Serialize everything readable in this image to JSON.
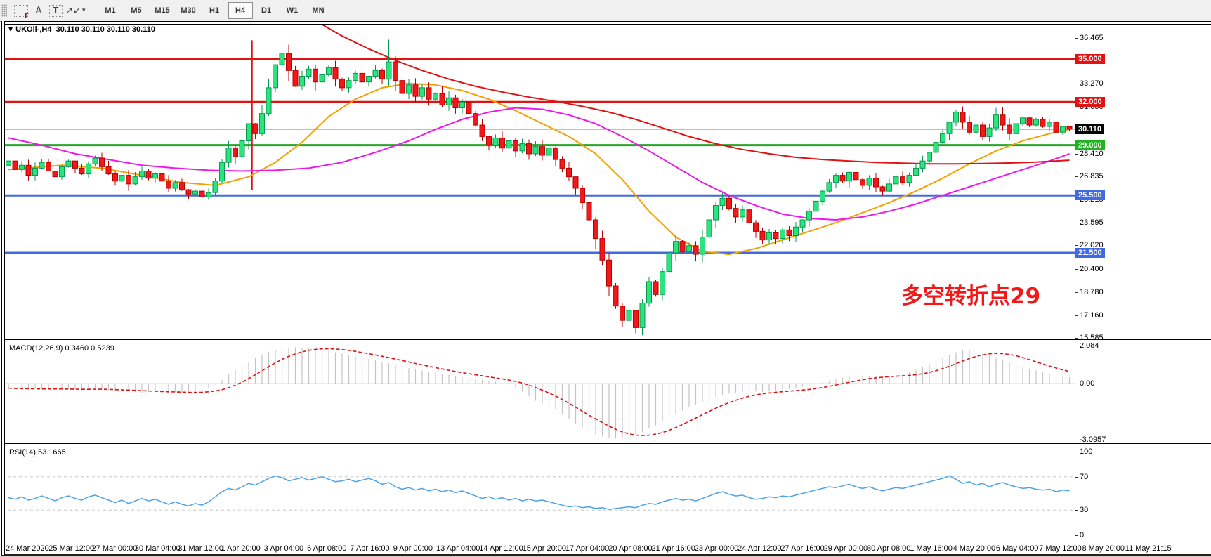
{
  "toolbar": {
    "icons": [
      {
        "name": "frame-f-icon",
        "glyph": "F",
        "type": "frame"
      },
      {
        "name": "label-a-icon",
        "glyph": "A",
        "type": "plain"
      },
      {
        "name": "textbox-t-icon",
        "glyph": "T",
        "type": "tbox"
      },
      {
        "name": "draw-arrows-icon",
        "glyph": "↗↙",
        "type": "plain"
      }
    ],
    "dropdown_caret": "▾",
    "timeframes": [
      {
        "label": "M1"
      },
      {
        "label": "M5"
      },
      {
        "label": "M15"
      },
      {
        "label": "M30"
      },
      {
        "label": "H1"
      },
      {
        "label": "H4",
        "active": true
      },
      {
        "label": "D1"
      },
      {
        "label": "W1"
      },
      {
        "label": "MN"
      }
    ]
  },
  "header": {
    "dropdown_glyph": "▼",
    "symbol": "UKOil-,H4",
    "quotes": "30.110 30.110 30.110 30.110"
  },
  "annotation": {
    "text": "多空转折点29",
    "color": "#f51717"
  },
  "macd": {
    "title": "MACD(12,26,9)",
    "values": "0.3460 0.5239",
    "axis_ticks": [
      {
        "label": "2.084",
        "value": 2.084
      },
      {
        "label": "0.00",
        "value": 0.0
      },
      {
        "label": "-3.0957",
        "value": -3.0957
      }
    ]
  },
  "rsi": {
    "title": "RSI(14)",
    "value": "53.1665",
    "axis_ticks": [
      {
        "label": "100",
        "value": 100
      },
      {
        "label": "70",
        "value": 70
      },
      {
        "label": "30",
        "value": 30
      },
      {
        "label": "0",
        "value": 0
      }
    ],
    "levels": [
      70,
      30
    ]
  },
  "price_axis": {
    "ticks": [
      {
        "label": "36.465",
        "value": 36.465
      },
      {
        "label": "34.845",
        "value": 34.845
      },
      {
        "label": "33.270",
        "value": 33.27
      },
      {
        "label": "31.650",
        "value": 31.65
      },
      {
        "label": "30.030",
        "value": 30.03
      },
      {
        "label": "28.410",
        "value": 28.41
      },
      {
        "label": "26.835",
        "value": 26.835
      },
      {
        "label": "25.215",
        "value": 25.215
      },
      {
        "label": "23.595",
        "value": 23.595
      },
      {
        "label": "22.020",
        "value": 22.02
      },
      {
        "label": "20.400",
        "value": 20.4
      },
      {
        "label": "18.780",
        "value": 18.78
      },
      {
        "label": "17.160",
        "value": 17.16
      },
      {
        "label": "15.585",
        "value": 15.585
      }
    ]
  },
  "x_axis": {
    "labels": [
      "24 Mar 2020",
      "25 Mar 12:00",
      "27 Mar 00:00",
      "30 Mar 04:00",
      "31 Mar 12:00",
      "1 Apr 20:00",
      "3 Apr 04:00",
      "6 Apr 08:00",
      "7 Apr 16:00",
      "9 Apr 00:00",
      "13 Apr 04:00",
      "14 Apr 12:00",
      "15 Apr 20:00",
      "17 Apr 04:00",
      "20 Apr 08:00",
      "21 Apr 16:00",
      "23 Apr 00:00",
      "24 Apr 12:00",
      "27 Apr 16:00",
      "29 Apr 00:00",
      "30 Apr 08:00",
      "1 May 16:00",
      "4 May 20:00",
      "6 May 04:00",
      "7 May 12:00",
      "8 May 20:00",
      "11 May 21:15"
    ]
  },
  "chart_data": {
    "type": "candlestick",
    "symbol": "UKOil-",
    "timeframe": "H4",
    "main": {
      "ylim": [
        15.585,
        36.465
      ],
      "current_price": {
        "value": 30.11,
        "line_color": "#808080",
        "badge": "30.110",
        "badge_bg": "#000000"
      },
      "hlines": [
        {
          "value": 35.0,
          "color": "#e01212",
          "width": 3,
          "badge": "35.000",
          "badge_bg": "#e01212"
        },
        {
          "value": 32.0,
          "color": "#e01212",
          "width": 3,
          "badge": "32.000",
          "badge_bg": "#e01212"
        },
        {
          "value": 29.0,
          "color": "#28a428",
          "width": 3,
          "badge": "29.000",
          "badge_bg": "#22b322"
        },
        {
          "value": 25.5,
          "color": "#4169e1",
          "width": 3,
          "badge": "25.500",
          "badge_bg": "#4169e1"
        },
        {
          "value": 21.5,
          "color": "#4169e1",
          "width": 3,
          "badge": "21.500",
          "badge_bg": "#4169e1"
        }
      ],
      "vline": {
        "index": 36.5,
        "from": 36.3,
        "to": 25.9,
        "color": "#e01212"
      },
      "closes": [
        27.9,
        27.3,
        27.6,
        26.9,
        27.4,
        27.8,
        27.2,
        26.8,
        27.5,
        27.9,
        27.4,
        27.0,
        27.7,
        28.1,
        27.5,
        27.0,
        26.5,
        26.9,
        26.3,
        26.8,
        27.2,
        26.7,
        27.0,
        26.5,
        26.0,
        26.4,
        25.9,
        25.6,
        25.8,
        25.4,
        25.7,
        26.5,
        27.8,
        28.8,
        28.2,
        29.3,
        30.5,
        29.8,
        31.2,
        33.0,
        34.6,
        35.4,
        34.2,
        33.1,
        33.8,
        34.3,
        33.4,
        33.9,
        34.4,
        33.6,
        33.0,
        33.5,
        34.0,
        33.4,
        33.8,
        34.2,
        33.6,
        34.8,
        33.5,
        32.6,
        33.2,
        32.4,
        33.0,
        32.2,
        32.6,
        31.8,
        32.3,
        31.6,
        32.0,
        31.2,
        30.4,
        29.6,
        29.0,
        29.5,
        28.8,
        29.3,
        28.6,
        29.1,
        28.4,
        28.9,
        28.3,
        28.8,
        28.0,
        27.4,
        26.8,
        26.0,
        25.0,
        23.8,
        22.5,
        21.0,
        19.2,
        17.8,
        16.8,
        17.5,
        16.3,
        18.0,
        19.5,
        18.6,
        20.2,
        21.5,
        22.3,
        21.6,
        22.0,
        21.4,
        22.6,
        23.8,
        24.8,
        25.3,
        24.6,
        24.0,
        24.5,
        23.6,
        23.0,
        22.4,
        22.9,
        22.5,
        23.1,
        22.7,
        23.3,
        23.8,
        24.4,
        25.1,
        25.8,
        26.4,
        26.9,
        26.5,
        27.1,
        26.6,
        26.2,
        26.7,
        26.1,
        25.8,
        26.3,
        26.8,
        26.4,
        26.9,
        27.4,
        27.9,
        28.5,
        29.2,
        29.8,
        30.6,
        31.3,
        30.6,
        29.9,
        30.4,
        29.6,
        30.2,
        31.1,
        30.4,
        29.8,
        30.5,
        30.9,
        30.4,
        30.8,
        30.3,
        30.6,
        29.9,
        30.3,
        30.11
      ],
      "wick_overrides": {
        "41": {
          "h": 36.2
        },
        "57": {
          "h": 36.35
        },
        "90": {
          "l": 18.5
        },
        "94": {
          "l": 15.9
        },
        "143": {
          "h": 31.7
        },
        "148": {
          "h": 31.6
        }
      },
      "ma_fast": {
        "color": "#f5a000",
        "points": [
          [
            0,
            27.3
          ],
          [
            8,
            27.6
          ],
          [
            14,
            27.4
          ],
          [
            20,
            26.9
          ],
          [
            26,
            26.4
          ],
          [
            31,
            26.2
          ],
          [
            36,
            26.8
          ],
          [
            40,
            27.8
          ],
          [
            44,
            29.2
          ],
          [
            48,
            31.0
          ],
          [
            52,
            32.2
          ],
          [
            56,
            33.0
          ],
          [
            60,
            33.3
          ],
          [
            64,
            33.2
          ],
          [
            68,
            32.8
          ],
          [
            72,
            32.2
          ],
          [
            76,
            31.4
          ],
          [
            80,
            30.5
          ],
          [
            84,
            29.6
          ],
          [
            88,
            28.4
          ],
          [
            92,
            26.6
          ],
          [
            96,
            24.4
          ],
          [
            100,
            22.6
          ],
          [
            104,
            21.6
          ],
          [
            108,
            21.4
          ],
          [
            112,
            21.8
          ],
          [
            116,
            22.4
          ],
          [
            120,
            23.0
          ],
          [
            124,
            23.6
          ],
          [
            128,
            24.3
          ],
          [
            132,
            25.0
          ],
          [
            136,
            25.8
          ],
          [
            140,
            26.7
          ],
          [
            144,
            27.7
          ],
          [
            148,
            28.6
          ],
          [
            152,
            29.3
          ],
          [
            156,
            29.8
          ],
          [
            159,
            30.1
          ]
        ]
      },
      "ma_medium": {
        "color": "#ee18ee",
        "points": [
          [
            0,
            29.5
          ],
          [
            5,
            29.0
          ],
          [
            10,
            28.4
          ],
          [
            15,
            28.0
          ],
          [
            20,
            27.6
          ],
          [
            25,
            27.4
          ],
          [
            30,
            27.25
          ],
          [
            35,
            27.2
          ],
          [
            40,
            27.25
          ],
          [
            45,
            27.4
          ],
          [
            50,
            27.8
          ],
          [
            55,
            28.5
          ],
          [
            60,
            29.3
          ],
          [
            64,
            30.1
          ],
          [
            68,
            30.8
          ],
          [
            72,
            31.3
          ],
          [
            76,
            31.6
          ],
          [
            80,
            31.5
          ],
          [
            84,
            31.1
          ],
          [
            88,
            30.5
          ],
          [
            92,
            29.6
          ],
          [
            96,
            28.6
          ],
          [
            100,
            27.5
          ],
          [
            104,
            26.4
          ],
          [
            108,
            25.5
          ],
          [
            112,
            24.8
          ],
          [
            116,
            24.2
          ],
          [
            120,
            23.9
          ],
          [
            124,
            23.8
          ],
          [
            128,
            24.0
          ],
          [
            132,
            24.4
          ],
          [
            136,
            24.9
          ],
          [
            140,
            25.5
          ],
          [
            144,
            26.1
          ],
          [
            148,
            26.7
          ],
          [
            152,
            27.3
          ],
          [
            156,
            27.9
          ],
          [
            159,
            28.4
          ]
        ]
      },
      "ma_slow": {
        "color": "#e01212",
        "points": [
          [
            47,
            37.4
          ],
          [
            50,
            36.6
          ],
          [
            54,
            35.7
          ],
          [
            58,
            34.9
          ],
          [
            62,
            34.2
          ],
          [
            66,
            33.6
          ],
          [
            70,
            33.1
          ],
          [
            74,
            32.7
          ],
          [
            78,
            32.35
          ],
          [
            82,
            32.05
          ],
          [
            86,
            31.7
          ],
          [
            90,
            31.3
          ],
          [
            94,
            30.8
          ],
          [
            98,
            30.2
          ],
          [
            102,
            29.6
          ],
          [
            106,
            29.1
          ],
          [
            110,
            28.7
          ],
          [
            114,
            28.4
          ],
          [
            118,
            28.15
          ],
          [
            122,
            28.0
          ],
          [
            126,
            27.9
          ],
          [
            130,
            27.8
          ],
          [
            134,
            27.75
          ],
          [
            138,
            27.7
          ],
          [
            142,
            27.7
          ],
          [
            146,
            27.72
          ],
          [
            150,
            27.76
          ],
          [
            154,
            27.82
          ],
          [
            159,
            27.95
          ]
        ]
      },
      "bull_fill": "#2ae47e",
      "bull_stroke": "#089850",
      "bear_fill": "#f01818",
      "bear_stroke": "#b80000"
    },
    "macd": {
      "ylim": [
        -3.0957,
        2.084
      ],
      "histogram": [
        -0.25,
        -0.3,
        -0.28,
        -0.32,
        -0.3,
        -0.34,
        -0.3,
        -0.28,
        -0.32,
        -0.3,
        -0.33,
        -0.36,
        -0.32,
        -0.28,
        -0.33,
        -0.38,
        -0.42,
        -0.45,
        -0.42,
        -0.46,
        -0.5,
        -0.46,
        -0.42,
        -0.46,
        -0.52,
        -0.48,
        -0.52,
        -0.56,
        -0.5,
        -0.4,
        -0.25,
        -0.05,
        0.2,
        0.5,
        0.75,
        1.0,
        1.2,
        1.4,
        1.6,
        1.75,
        1.85,
        1.92,
        1.97,
        2.0,
        1.98,
        1.95,
        1.9,
        1.85,
        1.8,
        1.72,
        1.65,
        1.58,
        1.5,
        1.42,
        1.35,
        1.28,
        1.2,
        1.12,
        1.02,
        0.92,
        0.85,
        0.78,
        0.72,
        0.66,
        0.6,
        0.54,
        0.48,
        0.42,
        0.36,
        0.3,
        0.25,
        0.2,
        0.15,
        0.1,
        0.02,
        -0.1,
        -0.25,
        -0.45,
        -0.7,
        -0.95,
        -1.1,
        -1.25,
        -1.45,
        -1.7,
        -1.95,
        -2.2,
        -2.45,
        -2.65,
        -2.8,
        -2.92,
        -3.0,
        -3.04,
        -3.0,
        -2.92,
        -2.8,
        -2.65,
        -2.48,
        -2.3,
        -2.1,
        -1.9,
        -1.7,
        -1.5,
        -1.32,
        -1.15,
        -1.0,
        -0.86,
        -0.74,
        -0.64,
        -0.56,
        -0.5,
        -0.46,
        -0.44,
        -0.44,
        -0.46,
        -0.44,
        -0.4,
        -0.35,
        -0.3,
        -0.24,
        -0.18,
        -0.1,
        -0.02,
        0.06,
        0.15,
        0.24,
        0.32,
        0.38,
        0.42,
        0.44,
        0.42,
        0.4,
        0.38,
        0.4,
        0.45,
        0.52,
        0.62,
        0.75,
        0.9,
        1.08,
        1.25,
        1.42,
        1.58,
        1.72,
        1.82,
        1.85,
        1.8,
        1.7,
        1.58,
        1.45,
        1.32,
        1.18,
        1.05,
        0.93,
        0.82,
        0.72,
        0.63,
        0.55,
        0.48,
        0.4,
        0.35
      ],
      "bar_color": "#c4c4c4",
      "signal_color": "#e01212"
    },
    "rsi": {
      "ylim": [
        0,
        100
      ],
      "values": [
        45,
        43,
        46,
        42,
        44,
        47,
        44,
        41,
        45,
        47,
        44,
        42,
        46,
        48,
        45,
        42,
        39,
        42,
        38,
        41,
        44,
        41,
        43,
        40,
        37,
        40,
        37,
        35,
        38,
        36,
        40,
        46,
        52,
        56,
        54,
        58,
        62,
        60,
        64,
        68,
        71,
        69,
        65,
        67,
        69,
        66,
        68,
        70,
        67,
        64,
        65,
        67,
        64,
        66,
        68,
        65,
        61,
        63,
        58,
        55,
        57,
        54,
        56,
        53,
        55,
        52,
        54,
        51,
        53,
        50,
        47,
        44,
        46,
        43,
        45,
        42,
        44,
        41,
        43,
        41,
        42,
        40,
        38,
        36,
        34,
        35,
        33,
        34,
        32,
        33,
        31,
        32,
        33,
        34,
        33,
        36,
        38,
        37,
        40,
        42,
        44,
        42,
        43,
        41,
        44,
        47,
        50,
        52,
        49,
        47,
        48,
        45,
        43,
        44,
        46,
        45,
        47,
        46,
        48,
        50,
        52,
        54,
        56,
        58,
        57,
        59,
        61,
        58,
        56,
        58,
        55,
        53,
        55,
        57,
        56,
        58,
        60,
        62,
        64,
        66,
        68,
        71,
        67,
        62,
        64,
        60,
        62,
        58,
        61,
        63,
        60,
        58,
        56,
        57,
        55,
        54,
        55,
        52,
        54,
        53.2
      ],
      "line_color": "#4da3e8",
      "level_line_color": "#c8c8c8"
    }
  }
}
